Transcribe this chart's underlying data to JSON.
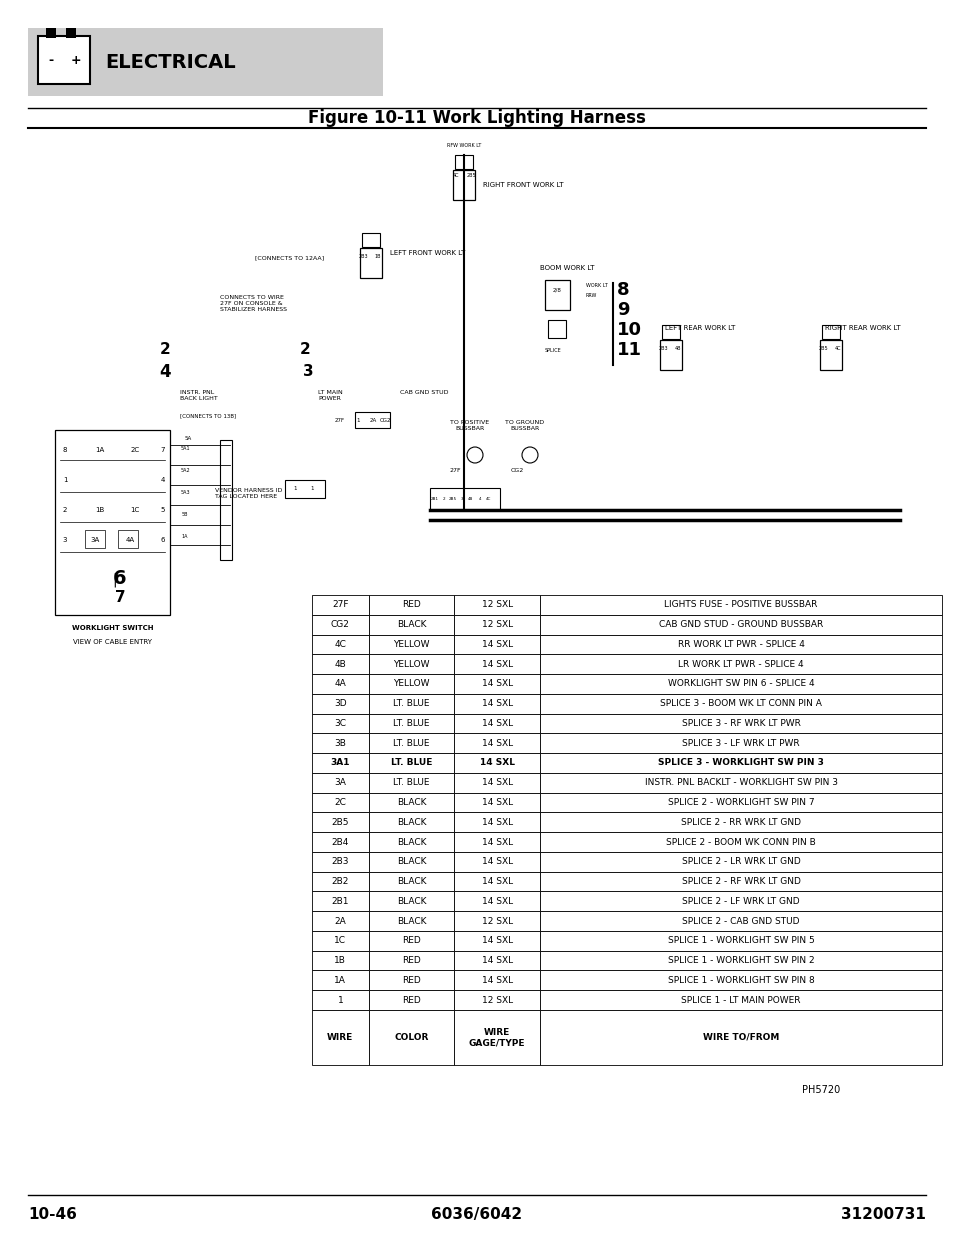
{
  "title": "Figure 10-11 Work Lighting Harness",
  "header_text": "ELECTRICAL",
  "page_bottom_left": "10-46",
  "page_bottom_center": "6036/6042",
  "page_bottom_right": "31200731",
  "figure_id": "PH5720",
  "table_data": [
    [
      "27F",
      "RED",
      "12 SXL",
      "LIGHTS FUSE - POSITIVE BUSSBAR"
    ],
    [
      "CG2",
      "BLACK",
      "12 SXL",
      "CAB GND STUD - GROUND BUSSBAR"
    ],
    [
      "4C",
      "YELLOW",
      "14 SXL",
      "RR WORK LT PWR - SPLICE 4"
    ],
    [
      "4B",
      "YELLOW",
      "14 SXL",
      "LR WORK LT PWR - SPLICE 4"
    ],
    [
      "4A",
      "YELLOW",
      "14 SXL",
      "WORKLIGHT SW PIN 6 - SPLICE 4"
    ],
    [
      "3D",
      "LT. BLUE",
      "14 SXL",
      "SPLICE 3 - BOOM WK LT CONN PIN A"
    ],
    [
      "3C",
      "LT. BLUE",
      "14 SXL",
      "SPLICE 3 - RF WRK LT PWR"
    ],
    [
      "3B",
      "LT. BLUE",
      "14 SXL",
      "SPLICE 3 - LF WRK LT PWR"
    ],
    [
      "3A1",
      "LT. BLUE",
      "14 SXL",
      "SPLICE 3 - WORKLIGHT SW PIN 3"
    ],
    [
      "3A",
      "LT. BLUE",
      "14 SXL",
      "INSTR. PNL BACKLT - WORKLIGHT SW PIN 3"
    ],
    [
      "2C",
      "BLACK",
      "14 SXL",
      "SPLICE 2 - WORKLIGHT SW PIN 7"
    ],
    [
      "2B5",
      "BLACK",
      "14 SXL",
      "SPLICE 2 - RR WRK LT GND"
    ],
    [
      "2B4",
      "BLACK",
      "14 SXL",
      "SPLICE 2 - BOOM WK CONN PIN B"
    ],
    [
      "2B3",
      "BLACK",
      "14 SXL",
      "SPLICE 2 - LR WRK LT GND"
    ],
    [
      "2B2",
      "BLACK",
      "14 SXL",
      "SPLICE 2 - RF WRK LT GND"
    ],
    [
      "2B1",
      "BLACK",
      "14 SXL",
      "SPLICE 2 - LF WRK LT GND"
    ],
    [
      "2A",
      "BLACK",
      "12 SXL",
      "SPLICE 2 - CAB GND STUD"
    ],
    [
      "1C",
      "RED",
      "14 SXL",
      "SPLICE 1 - WORKLIGHT SW PIN 5"
    ],
    [
      "1B",
      "RED",
      "14 SXL",
      "SPLICE 1 - WORKLIGHT SW PIN 2"
    ],
    [
      "1A",
      "RED",
      "14 SXL",
      "SPLICE 1 - WORKLIGHT SW PIN 8"
    ],
    [
      "1",
      "RED",
      "12 SXL",
      "SPLICE 1 - LT MAIN POWER"
    ]
  ],
  "table_headers": [
    "WIRE",
    "COLOR",
    "WIRE\nGAGE/TYPE",
    "WIRE TO/FROM"
  ],
  "bold_rows": [
    8
  ],
  "bg_color": "#ffffff"
}
